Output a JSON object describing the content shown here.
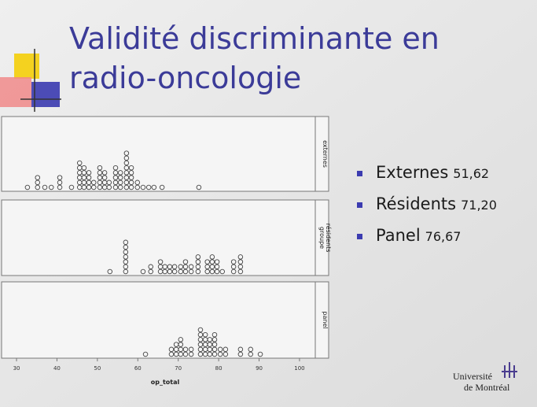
{
  "title": [
    "Validité discriminante en",
    "radio-oncologie"
  ],
  "chart_data": {
    "type": "dotplot",
    "x_label": "op_total",
    "facet_label": "groupe",
    "xlim": [
      26.3,
      103.9
    ],
    "xticks": [
      30,
      40,
      50,
      60,
      70,
      80,
      90,
      100
    ],
    "panels": [
      {
        "name": "externes",
        "x": [
          32.7,
          35.2,
          37,
          38.6,
          40.7,
          43.6,
          45.6,
          46.7,
          47.9,
          49.1,
          50.6,
          51.8,
          52.9,
          54.5,
          55.7,
          57.2,
          58.4,
          59.9,
          61.3,
          62.7,
          64,
          66,
          75.1
        ],
        "counts": [
          1,
          3,
          1,
          1,
          3,
          1,
          6,
          5,
          4,
          2,
          5,
          4,
          2,
          5,
          4,
          8,
          5,
          2,
          1,
          1,
          1,
          1,
          1
        ]
      },
      {
        "name": "résidents",
        "x": [
          53.1,
          57,
          61.3,
          63.2,
          65.6,
          66.7,
          67.9,
          69.1,
          70.6,
          71.8,
          73.2,
          74.9,
          77.2,
          78.4,
          79.6,
          80.9,
          83.7,
          85.4
        ],
        "counts": [
          1,
          7,
          1,
          2,
          3,
          2,
          2,
          2,
          2,
          3,
          2,
          4,
          3,
          4,
          3,
          1,
          3,
          4
        ]
      },
      {
        "name": "panel",
        "x": [
          61.9,
          68.3,
          69.5,
          70.6,
          71.8,
          73.2,
          75.5,
          76.7,
          77.8,
          79,
          80.4,
          81.7,
          85.4,
          87.9,
          90.3
        ],
        "counts": [
          1,
          2,
          3,
          4,
          2,
          2,
          6,
          5,
          4,
          5,
          2,
          2,
          2,
          2,
          1
        ]
      }
    ]
  },
  "legend": [
    {
      "name": "Externes",
      "value": "51,62"
    },
    {
      "name": "Résidents",
      "value": "71,20"
    },
    {
      "name": "Panel",
      "value": "76,67"
    }
  ],
  "logo": [
    "Université",
    "de Montréal"
  ]
}
